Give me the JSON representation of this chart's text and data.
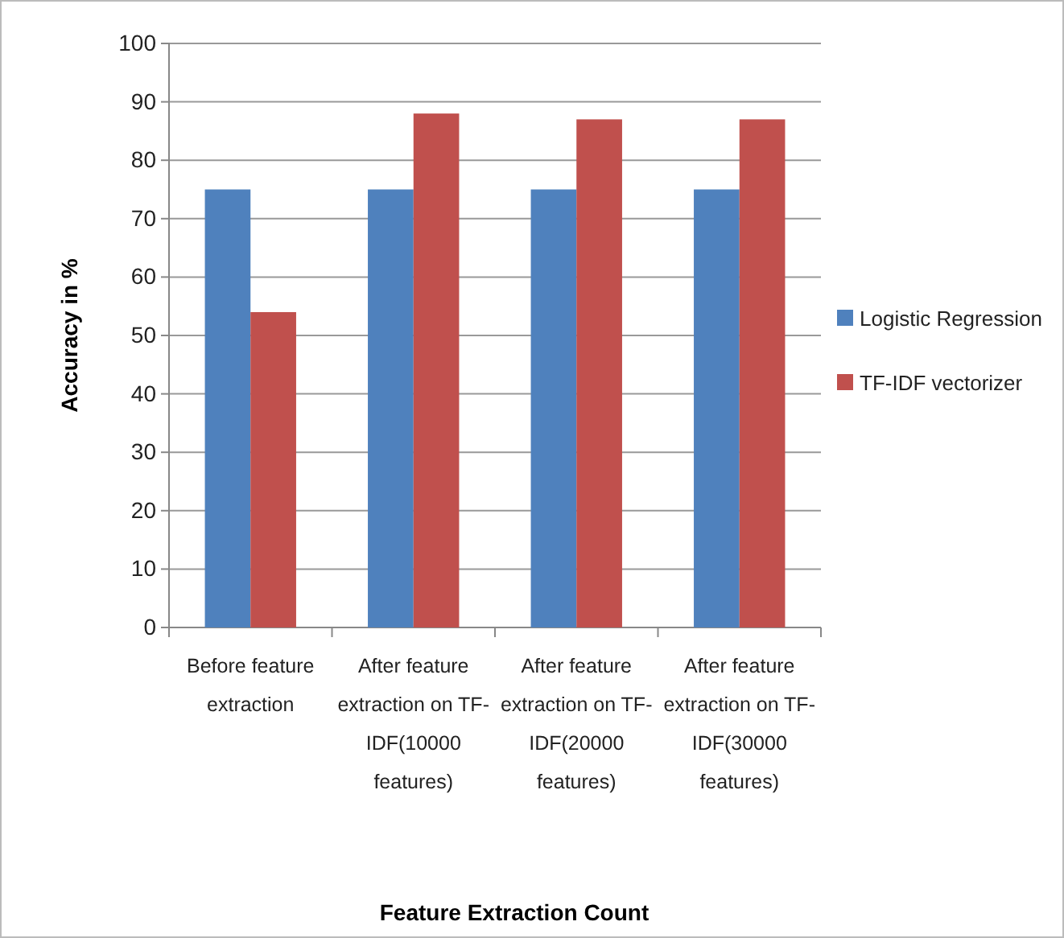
{
  "chart_data": {
    "type": "bar",
    "xlabel": "Feature Extraction Count",
    "ylabel": "Accuracy in %",
    "categories": [
      "Before feature extraction",
      "After feature extraction on TF-IDF(10000 features)",
      "After feature extraction on TF-IDF(20000 features)",
      "After feature extraction on TF-IDF(30000 features)"
    ],
    "series": [
      {
        "name": "Logistic Regression",
        "color": "#4f81bd",
        "values": [
          75,
          75,
          75,
          75
        ]
      },
      {
        "name": "TF-IDF vectorizer",
        "color": "#c0504d",
        "values": [
          54,
          88,
          87,
          87
        ]
      }
    ],
    "ylim": [
      0,
      100
    ],
    "yticks": [
      0,
      10,
      20,
      30,
      40,
      50,
      60,
      70,
      80,
      90,
      100
    ],
    "grid": "y",
    "legend": "right"
  }
}
